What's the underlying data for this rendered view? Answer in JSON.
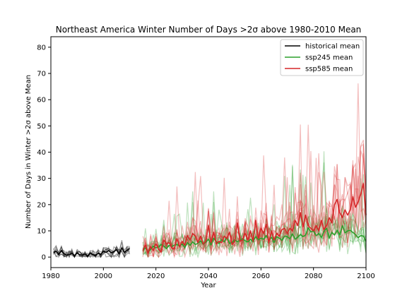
{
  "chart_data": {
    "type": "line",
    "title": "Northeast America Winter Number of Days >2σ above 1980-2010 Mean",
    "xlabel": "Year",
    "ylabel": "Number of Days in Winter >2σ above Mean",
    "xlim": [
      1980,
      2100
    ],
    "ylim": [
      -4,
      84
    ],
    "xticks": [
      1980,
      2000,
      2020,
      2040,
      2060,
      2080,
      2100
    ],
    "yticks": [
      0,
      10,
      20,
      30,
      40,
      50,
      60,
      70,
      80
    ],
    "grid": false,
    "legend_position": "top-right",
    "colors": {
      "historical": "#000000",
      "ssp245": "#2ca02c",
      "ssp585": "#d62728"
    },
    "series": [
      {
        "name": "historical mean",
        "color": "#000000",
        "x": [
          1981,
          1982,
          1983,
          1984,
          1985,
          1986,
          1987,
          1988,
          1989,
          1990,
          1991,
          1992,
          1993,
          1994,
          1995,
          1996,
          1997,
          1998,
          1999,
          2000,
          2001,
          2002,
          2003,
          2004,
          2005,
          2006,
          2007,
          2008,
          2009,
          2010
        ],
        "values": [
          1.8,
          2.2,
          1.0,
          2.5,
          1.2,
          0.8,
          0.9,
          1.4,
          0.6,
          1.5,
          0.9,
          0.7,
          1.2,
          0.4,
          1.6,
          0.9,
          0.5,
          1.5,
          1.0,
          2.2,
          1.8,
          2.5,
          1.6,
          2.1,
          2.8,
          1.2,
          3.5,
          1.8,
          2.6,
          3.2
        ]
      },
      {
        "name": "ssp245 mean",
        "color": "#2ca02c",
        "x": [
          2015,
          2016,
          2017,
          2018,
          2019,
          2020,
          2021,
          2022,
          2023,
          2024,
          2025,
          2026,
          2027,
          2028,
          2029,
          2030,
          2031,
          2032,
          2033,
          2034,
          2035,
          2036,
          2037,
          2038,
          2039,
          2040,
          2041,
          2042,
          2043,
          2044,
          2045,
          2046,
          2047,
          2048,
          2049,
          2050,
          2051,
          2052,
          2053,
          2054,
          2055,
          2056,
          2057,
          2058,
          2059,
          2060,
          2061,
          2062,
          2063,
          2064,
          2065,
          2066,
          2067,
          2068,
          2069,
          2070,
          2071,
          2072,
          2073,
          2074,
          2075,
          2076,
          2077,
          2078,
          2079,
          2080,
          2081,
          2082,
          2083,
          2084,
          2085,
          2086,
          2087,
          2088,
          2089,
          2090,
          2091,
          2092,
          2093,
          2094,
          2095,
          2096,
          2097,
          2098,
          2099,
          2100
        ],
        "values": [
          2.5,
          3.5,
          2.0,
          3.0,
          4.2,
          3.5,
          3.8,
          4.8,
          4.2,
          3.2,
          4.5,
          4.0,
          4.6,
          4.8,
          4.2,
          5.0,
          3.6,
          5.5,
          4.5,
          5.8,
          4.8,
          5.2,
          6.2,
          4.9,
          5.6,
          6.8,
          4.6,
          7.2,
          5.8,
          5.2,
          6.6,
          5.8,
          7.5,
          5.2,
          5.5,
          6.6,
          5.8,
          6.5,
          7.0,
          6.2,
          5.8,
          6.8,
          5.8,
          7.8,
          6.6,
          7.2,
          6.8,
          8.2,
          6.5,
          7.5,
          5.6,
          7.8,
          7.2,
          6.4,
          8.0,
          7.8,
          7.0,
          8.8,
          6.8,
          7.6,
          8.6,
          7.8,
          8.4,
          11.2,
          9.6,
          10.0,
          8.2,
          9.0,
          7.5,
          9.8,
          11.0,
          7.2,
          9.4,
          8.4,
          10.2,
          8.5,
          12.0,
          9.2,
          10.0,
          10.2,
          9.4,
          8.6,
          7.4,
          8.2,
          8.0,
          6.0
        ]
      },
      {
        "name": "ssp585 mean",
        "color": "#d62728",
        "x": [
          2015,
          2016,
          2017,
          2018,
          2019,
          2020,
          2021,
          2022,
          2023,
          2024,
          2025,
          2026,
          2027,
          2028,
          2029,
          2030,
          2031,
          2032,
          2033,
          2034,
          2035,
          2036,
          2037,
          2038,
          2039,
          2040,
          2041,
          2042,
          2043,
          2044,
          2045,
          2046,
          2047,
          2048,
          2049,
          2050,
          2051,
          2052,
          2053,
          2054,
          2055,
          2056,
          2057,
          2058,
          2059,
          2060,
          2061,
          2062,
          2063,
          2064,
          2065,
          2066,
          2067,
          2068,
          2069,
          2070,
          2071,
          2072,
          2073,
          2074,
          2075,
          2076,
          2077,
          2078,
          2079,
          2080,
          2081,
          2082,
          2083,
          2084,
          2085,
          2086,
          2087,
          2088,
          2089,
          2090,
          2091,
          2092,
          2093,
          2094,
          2095,
          2096,
          2097,
          2098,
          2099,
          2100
        ],
        "values": [
          2.5,
          4.5,
          1.5,
          4.0,
          2.5,
          5.0,
          3.0,
          2.0,
          6.5,
          5.0,
          5.5,
          3.5,
          3.0,
          7.0,
          4.0,
          6.0,
          4.5,
          8.2,
          6.5,
          9.0,
          8.0,
          5.5,
          8.0,
          5.0,
          6.0,
          12.0,
          5.5,
          9.5,
          5.0,
          6.0,
          5.5,
          8.0,
          7.0,
          9.5,
          4.8,
          6.0,
          13.0,
          6.0,
          6.5,
          9.0,
          6.5,
          10.0,
          6.0,
          14.0,
          7.0,
          11.0,
          9.0,
          12.5,
          5.5,
          10.0,
          6.5,
          9.0,
          8.0,
          10.5,
          11.0,
          9.0,
          11.0,
          10.0,
          14.0,
          12.0,
          17.0,
          11.5,
          16.0,
          12.0,
          11.0,
          10.0,
          12.0,
          10.0,
          14.0,
          10.5,
          12.0,
          15.0,
          13.0,
          20.0,
          22.0,
          17.0,
          15.0,
          18.0,
          16.0,
          18.0,
          23.0,
          19.0,
          21.0,
          24.0,
          28.0,
          16.0
        ]
      }
    ],
    "legend": [
      {
        "label": "historical mean",
        "color": "#000000"
      },
      {
        "label": "ssp245 mean",
        "color": "#2ca02c"
      },
      {
        "label": "ssp585 mean",
        "color": "#d62728"
      }
    ]
  }
}
